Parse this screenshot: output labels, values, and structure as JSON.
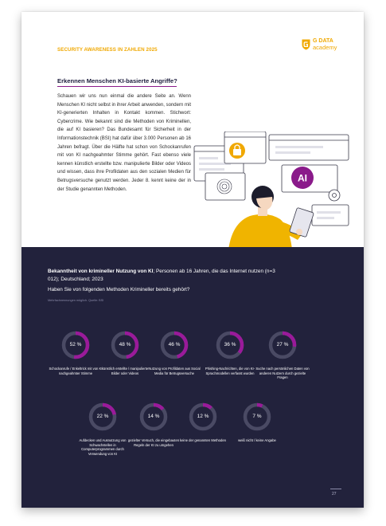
{
  "header": {
    "title": "SECURITY AWARENESS IN ZAHLEN 2025"
  },
  "logo": {
    "line1": "G DATA",
    "line2": "academy",
    "color": "#f0a800"
  },
  "article": {
    "heading": "Erkennen Menschen KI-basierte Angriffe?",
    "body": "Schauen wir uns nun einmal die andere Seite an. Wenn Menschen KI nicht selbst in ihrer Arbeit anwenden, sondern mit KI-generierten Inhalten in Kontakt kommen. Stichwort: Cybercrime. Wie bekannt sind die Methoden von Kriminellen, die auf KI basieren? Das Bundesamt für Sicherheit in der Informationstechnik (BSI) hat dafür über 3.000 Personen ab 16 Jahren befragt. Über die Hälfte hat schon von Schockanrufen mit von KI nachgeahmter Stimme gehört. Fast ebenso viele kennen künstlich erstellte bzw. manipulierte Bilder oder Videos und wissen, dass ihre Profildaten aus den sozialen Medien für Betrugsversuche genutzt werden. Jeder 8. kennt keine der in der Studie genannten Methoden."
  },
  "illustration": {
    "ai_badge": "AI"
  },
  "stats": {
    "title_bold": "Bekanntheit von krimineller Nutzung von KI",
    "title_rest": "; Personen ab 16 Jahren, die das Internet nutzen (n=3 012); Deutschland; 2023",
    "question": "Haben Sie von folgenden Methoden Krimineller bereits gehört?",
    "note": "Mehrfachnennungen möglich. Quelle: BSI",
    "track_color": "#4a4a64",
    "fill_color": "#9a1a9a",
    "items": [
      {
        "value": 52,
        "label": "52 %",
        "text": "Schockanrufe / Enkeltrick mit von KI nachgeahmter Stimme"
      },
      {
        "value": 48,
        "label": "48 %",
        "text": "künstlich erstellte / manipulierte Bilder oder Videos"
      },
      {
        "value": 46,
        "label": "46 %",
        "text": "Nutzung von Profildaten aus Social Media für Betrugsversuche"
      },
      {
        "value": 36,
        "label": "36 %",
        "text": "Phishing-Nachrichten, die von KI-Sprachmodellen verfasst wurden"
      },
      {
        "value": 27,
        "label": "27 %",
        "text": "Suche nach persönlichen Daten von anderen Nutzern durch gezielte Fragen"
      },
      {
        "value": 22,
        "label": "22 %",
        "text": "Aufdecken und Ausnutzung von Schwachstellen in Computerprogrammen durch Verwendung von KI"
      },
      {
        "value": 14,
        "label": "14 %",
        "text": "gezielter Versuch, die eingebauten Regeln der KI zu umgehen"
      },
      {
        "value": 12,
        "label": "12 %",
        "text": "keine der genannten Methoden"
      },
      {
        "value": 7,
        "label": "7 %",
        "text": "weiß nicht / keine Angabe"
      }
    ]
  },
  "footer": {
    "page_number": "27"
  }
}
